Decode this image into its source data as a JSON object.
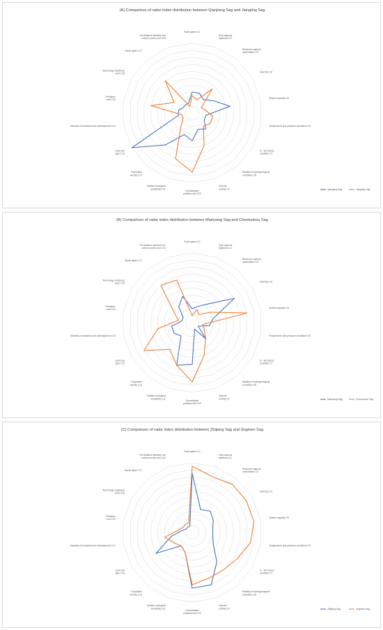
{
  "axis_labels": [
    "Fault system C1",
    "Seal caprock tightness C2",
    "Reservoir-caprock combination C3",
    "Heat flux C4",
    "Sealed capacity C5",
    "Temperature and pressure conditions C6",
    "In - situ stress condition C7",
    "Stability of hydrogeological conditions C8",
    "Seismic activity C9",
    "Groundwater pollution risk C10",
    "Surface ecological sensitivity C11",
    "Population density C12",
    "Land use type C13",
    "Maturity of industrial zone development C14",
    "Perfusion cost C15",
    "Technology readiness level C16",
    "Burial depth C17",
    "The distance between the carbon source and C18"
  ],
  "colors": {
    "series1": "#4472c4",
    "series2": "#ed7d31",
    "grid": "#d9d9d9",
    "title": "#404040"
  },
  "chart_data": [
    {
      "type": "radar",
      "title": "(A) Comparison of radar index distribution between Qianjiang Sag and Jiangling Sag",
      "rlim": [
        0,
        10
      ],
      "grid_rings": 10,
      "legend_position": "bottom-right",
      "series": [
        {
          "name": "Qianjiang Sag",
          "values": [
            3,
            3,
            2.5,
            3.5,
            5.5,
            2,
            2,
            3,
            2.5,
            4,
            3.3,
            6,
            10,
            2,
            2,
            1.5,
            1.5,
            1.5
          ]
        },
        {
          "name": "Jiangling Sag",
          "values": [
            2.5,
            2,
            4.5,
            1.5,
            2,
            3,
            3,
            2.5,
            5,
            8.5,
            7,
            2.5,
            1.5,
            1.5,
            6,
            3,
            6,
            1
          ]
        }
      ]
    },
    {
      "type": "radar",
      "title": "(B) Comparison of radar index distribution between Mianyang Sag and Chentuokou Sag",
      "rlim": [
        0,
        10
      ],
      "grid_rings": 10,
      "legend_position": "bottom-right",
      "series": [
        {
          "name": "Mianyang Sag",
          "values": [
            2,
            2.5,
            3.5,
            7,
            3,
            2.5,
            1,
            3,
            1,
            6,
            6.5,
            2.5,
            3,
            3,
            1.5,
            1.5,
            3,
            4
          ]
        },
        {
          "name": "Chentuokou Sag",
          "values": [
            1,
            2,
            1.5,
            3,
            8,
            1.5,
            2,
            3,
            5,
            8.5,
            6.5,
            5,
            8,
            5,
            2,
            3,
            7,
            6.5
          ]
        }
      ]
    },
    {
      "type": "radar",
      "title": "(C) Comparison of radar index distribution between Zhijiang Sag and Jingmen Sag",
      "rlim": [
        0,
        10
      ],
      "grid_rings": 10,
      "legend_position": "bottom-right",
      "series": [
        {
          "name": "Zhijiang Sag",
          "values": [
            8.5,
            3.5,
            4,
            3.5,
            3,
            3,
            3.5,
            5.5,
            8,
            8,
            3,
            2.5,
            6,
            3,
            1.5,
            1,
            1,
            1
          ]
        },
        {
          "name": "Jingmen Sag",
          "values": [
            9.5,
            8.5,
            9,
            9,
            9,
            8.5,
            7.5,
            7,
            7,
            7.5,
            3,
            2.5,
            3,
            4,
            2,
            1.5,
            1.5,
            1.5
          ]
        }
      ]
    }
  ]
}
